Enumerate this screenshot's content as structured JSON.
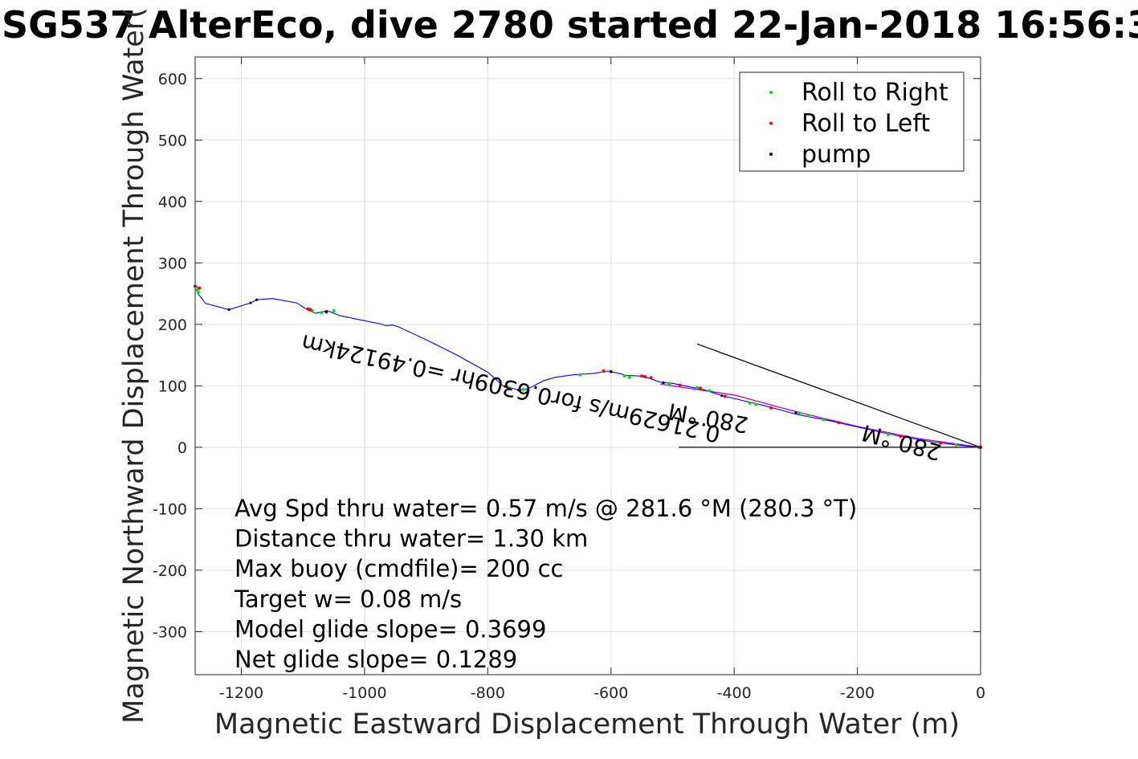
{
  "chart_data": {
    "type": "line",
    "title": "SG537 AlterEco, dive 2780 started 22-Jan-2018 16:56:3",
    "xlabel": "Magnetic Eastward Displacement Through Water (m)",
    "ylabel": "Magnetic Northward Displacement Through Water(",
    "xlim": [
      -1275,
      0
    ],
    "ylim": [
      -370,
      635
    ],
    "xticks": [
      -1200,
      -1000,
      -800,
      -600,
      -400,
      -200,
      0
    ],
    "yticks": [
      600,
      500,
      400,
      300,
      200,
      100,
      0,
      -100,
      -200,
      -300
    ],
    "grid": true,
    "legend_position": "top-right",
    "legend": [
      {
        "label": "Roll to Right",
        "color": "#00e000"
      },
      {
        "label": "Roll to Left",
        "color": "#ff0000"
      },
      {
        "label": "pump",
        "color": "#000000"
      }
    ],
    "track_color": "#0000ff",
    "track": [
      [
        -1275,
        262
      ],
      [
        -1270,
        260
      ],
      [
        -1272,
        252
      ],
      [
        -1258,
        234
      ],
      [
        -1220,
        224
      ],
      [
        -1185,
        235
      ],
      [
        -1175,
        240
      ],
      [
        -1150,
        242
      ],
      [
        -1110,
        235
      ],
      [
        -1095,
        225
      ],
      [
        -1080,
        218
      ],
      [
        -1060,
        222
      ],
      [
        -1040,
        214
      ],
      [
        -1000,
        206
      ],
      [
        -975,
        201
      ],
      [
        -965,
        198
      ],
      [
        -955,
        199
      ],
      [
        -945,
        196
      ],
      [
        -900,
        175
      ],
      [
        -850,
        150
      ],
      [
        -800,
        122
      ],
      [
        -775,
        100
      ],
      [
        -760,
        96
      ],
      [
        -750,
        93
      ],
      [
        -735,
        95
      ],
      [
        -710,
        108
      ],
      [
        -690,
        114
      ],
      [
        -660,
        118
      ],
      [
        -630,
        120
      ],
      [
        -605,
        124
      ],
      [
        -590,
        121
      ],
      [
        -575,
        117
      ],
      [
        -555,
        116
      ],
      [
        -540,
        113
      ],
      [
        -520,
        106
      ],
      [
        -500,
        104
      ],
      [
        -480,
        100
      ],
      [
        -450,
        94
      ],
      [
        -420,
        84
      ],
      [
        -390,
        77
      ],
      [
        -360,
        70
      ],
      [
        -330,
        62
      ],
      [
        -300,
        54
      ],
      [
        -270,
        48
      ],
      [
        -240,
        42
      ],
      [
        -200,
        33
      ],
      [
        -160,
        24
      ],
      [
        -120,
        16
      ],
      [
        -80,
        9
      ],
      [
        -40,
        4
      ],
      [
        0,
        0
      ]
    ],
    "rtw_track_color": "#c000c0",
    "rtw_track": [
      [
        -520,
        103
      ],
      [
        -400,
        85
      ],
      [
        -300,
        58
      ],
      [
        -200,
        34
      ],
      [
        -100,
        14
      ],
      [
        0,
        0
      ]
    ],
    "roll_right_points": [
      [
        -1272,
        256
      ],
      [
        -1270,
        252
      ],
      [
        -1085,
        222
      ],
      [
        -1070,
        219
      ],
      [
        -1050,
        222
      ],
      [
        -768,
        98
      ],
      [
        -742,
        94
      ],
      [
        -650,
        118
      ],
      [
        -578,
        116
      ],
      [
        -570,
        114
      ],
      [
        -515,
        105
      ],
      [
        -505,
        104
      ],
      [
        -460,
        97
      ],
      [
        -440,
        92
      ],
      [
        -375,
        72
      ],
      [
        -365,
        70
      ],
      [
        -295,
        56
      ],
      [
        -280,
        52
      ],
      [
        -255,
        45
      ],
      [
        -150,
        21
      ],
      [
        -75,
        8
      ],
      [
        -40,
        4
      ]
    ],
    "roll_left_points": [
      [
        -1275,
        262
      ],
      [
        -1268,
        259
      ],
      [
        -1092,
        225
      ],
      [
        -1088,
        224
      ],
      [
        -1062,
        220
      ],
      [
        -612,
        124
      ],
      [
        -600,
        123
      ],
      [
        -550,
        116
      ],
      [
        -545,
        115
      ],
      [
        -535,
        113
      ],
      [
        -488,
        101
      ],
      [
        -455,
        96
      ],
      [
        -415,
        83
      ],
      [
        -340,
        64
      ],
      [
        -230,
        40
      ],
      [
        -130,
        18
      ],
      [
        -65,
        7
      ],
      [
        -2,
        0
      ],
      [
        0,
        0
      ]
    ],
    "pump_points": [
      [
        -1220,
        224
      ],
      [
        -1185,
        235
      ],
      [
        -1175,
        240
      ],
      [
        -1062,
        221
      ],
      [
        -772,
        99
      ],
      [
        -750,
        93
      ],
      [
        -600,
        123
      ],
      [
        -515,
        105
      ],
      [
        -420,
        84
      ],
      [
        -300,
        56
      ],
      [
        0,
        0
      ]
    ],
    "lines": [
      {
        "from": [
          0,
          0
        ],
        "to": [
          -460,
          168
        ],
        "color": "#000000"
      },
      {
        "from": [
          0,
          0
        ],
        "to": [
          -490,
          0
        ],
        "color": "#000000"
      }
    ],
    "rotated_annotations": [
      {
        "text": "0.21629m/s for0.6309hr =0.49124km",
        "x": -760,
        "y": 108,
        "angle": 192.5
      },
      {
        "text": "280 °M",
        "x": -440,
        "y": 60,
        "angle": 190.3
      },
      {
        "text": "280 °M",
        "x": -125,
        "y": 20,
        "angle": 195
      }
    ],
    "annotations": [
      "Avg Spd thru water=  0.57 m/s @ 281.6 °M (280.3 °T)",
      "Distance thru water=  1.30 km",
      "Max buoy (cmdfile)= 200 cc",
      "Target w= 0.08 m/s",
      "Model glide slope= 0.3699",
      "Net glide slope= 0.1289"
    ]
  }
}
